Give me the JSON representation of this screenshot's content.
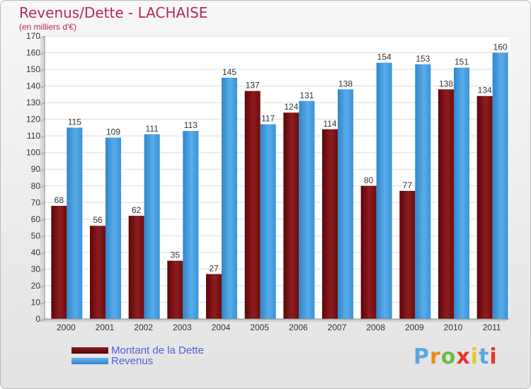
{
  "title": "Revenus/Dette - LACHAISE",
  "subtitle": "(en milliers d'€)",
  "colors": {
    "dette": "#7a1416",
    "revenus": "#3f98df",
    "title": "#b5285a"
  },
  "legend": {
    "dette_label": "Montant de la Dette",
    "revenus_label": "Revenus"
  },
  "logo": {
    "text": "Proxiti",
    "letters": [
      "P",
      "r",
      "o",
      "x",
      "i",
      "t",
      "i"
    ],
    "letter_colors": [
      "#5aa8e0",
      "#ef8a1e",
      "#6abd45",
      "#e6342f",
      "#e6c82a",
      "#5aa8e0",
      "#e6342f"
    ]
  },
  "chart_data": {
    "type": "bar",
    "title": "Revenus/Dette - LACHAISE",
    "subtitle": "(en milliers d'€)",
    "categories": [
      "2000",
      "2001",
      "2002",
      "2003",
      "2004",
      "2005",
      "2006",
      "2007",
      "2008",
      "2009",
      "2010",
      "2011"
    ],
    "series": [
      {
        "name": "Montant de la Dette",
        "values": [
          68,
          56,
          62,
          35,
          27,
          137,
          124,
          114,
          80,
          77,
          138,
          134
        ]
      },
      {
        "name": "Revenus",
        "values": [
          115,
          109,
          111,
          113,
          145,
          117,
          131,
          138,
          154,
          153,
          151,
          160
        ]
      }
    ],
    "yticks": [
      0,
      10,
      20,
      30,
      40,
      50,
      60,
      70,
      80,
      90,
      100,
      110,
      120,
      130,
      140,
      150,
      160,
      170
    ],
    "ylim": [
      0,
      170
    ],
    "grid": true,
    "legend_position": "bottom-left"
  }
}
